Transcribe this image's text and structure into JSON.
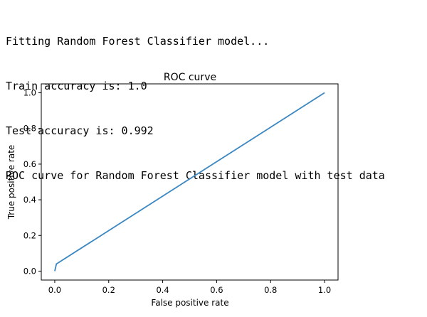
{
  "console": {
    "lines": [
      "Fitting Random Forest Classifier model...",
      "Train accuracy is: 1.0",
      "Test accuracy is: 0.992",
      "ROC curve for Random Forest Classifier model with test data"
    ]
  },
  "chart_data": {
    "type": "line",
    "title": "ROC curve",
    "xlabel": "False positive rate",
    "ylabel": "True positive rate",
    "xlim": [
      -0.05,
      1.05
    ],
    "ylim": [
      -0.05,
      1.05
    ],
    "xticks": [
      0.0,
      0.2,
      0.4,
      0.6,
      0.8,
      1.0
    ],
    "xtick_labels": [
      "0.0",
      "0.2",
      "0.4",
      "0.6",
      "0.8",
      "1.0"
    ],
    "yticks": [
      0.0,
      0.2,
      0.4,
      0.6,
      0.8,
      1.0
    ],
    "ytick_labels": [
      "0.0",
      "0.2",
      "0.4",
      "0.6",
      "0.8",
      "1.0"
    ],
    "grid": false,
    "series": [
      {
        "name": "ROC",
        "color": "#3a87c2",
        "x": [
          0.0,
          0.006,
          1.0
        ],
        "y": [
          0.0,
          0.04,
          1.0
        ]
      }
    ]
  }
}
